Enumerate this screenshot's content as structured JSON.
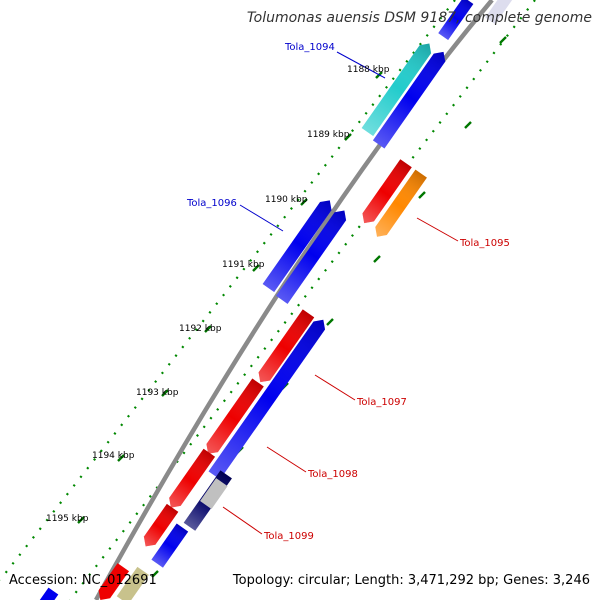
{
  "title": "Tolumonas auensis DSM 9187, complete genome",
  "footer": {
    "accession": "Accession: NC_012691",
    "summary": "Topology: circular; Length: 3,471,292 bp; Genes: 3,246"
  },
  "scale_ticks": [
    "1188 kbp",
    "1189 kbp",
    "1190 kbp",
    "1191 kbp",
    "1192 kbp",
    "1193 kbp",
    "1194 kbp",
    "1195 kbp"
  ],
  "gene_labels": [
    {
      "text": "Tola_1094",
      "color": "#0000cc"
    },
    {
      "text": "Tola_1095",
      "color": "#cc0000"
    },
    {
      "text": "Tola_1096",
      "color": "#0000cc"
    },
    {
      "text": "Tola_1097",
      "color": "#cc0000"
    },
    {
      "text": "Tola_1098",
      "color": "#cc0000"
    },
    {
      "text": "Tola_1099",
      "color": "#cc0000"
    }
  ],
  "colors": {
    "forward_cds": "#0000ee",
    "reverse_cds": "#ee0000",
    "teal_feature": "#22cccc",
    "orange_feature": "#ff8800",
    "navy_feature": "#000066",
    "grey_feature": "#c0c0c0",
    "khaki_feature": "#c8c28c",
    "backbone": "#888888",
    "tick_dots": "#008800"
  }
}
